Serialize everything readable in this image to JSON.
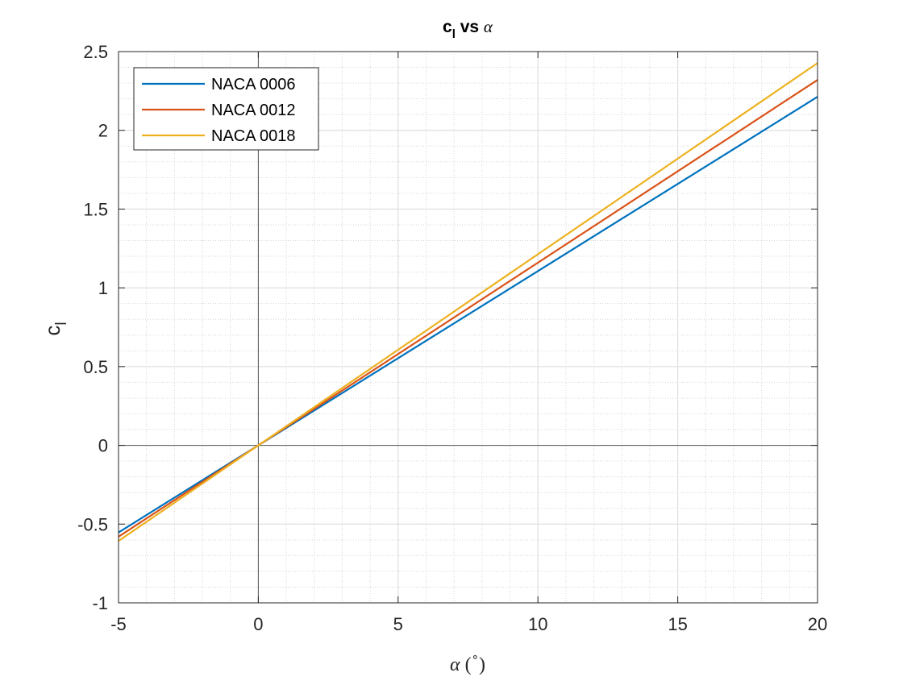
{
  "chart_data": {
    "type": "line",
    "title_main": "c",
    "title_sub": "l",
    "title_rest": " vs ",
    "title_symbol": "α",
    "xlabel_symbol": "α",
    "xlabel_open": " (",
    "xlabel_degree": "∘",
    "xlabel_close": ")",
    "ylabel_main": "c",
    "ylabel_sub": "l",
    "xlim": [
      -5,
      20
    ],
    "ylim": [
      -1,
      2.5
    ],
    "xticks": [
      -5,
      0,
      5,
      10,
      15,
      20
    ],
    "xtick_labels": [
      "-5",
      "0",
      "5",
      "10",
      "15",
      "20"
    ],
    "yticks": [
      -1,
      -0.5,
      0,
      0.5,
      1,
      1.5,
      2,
      2.5
    ],
    "ytick_labels": [
      "-1",
      "-0.5",
      "0",
      "0.5",
      "1",
      "1.5",
      "2",
      "2.5"
    ],
    "grid": true,
    "minor_grid": true,
    "legend_position": "top-left",
    "series": [
      {
        "name": "NACA 0006",
        "color": "#0072BD",
        "x": [
          -5,
          0,
          20
        ],
        "y": [
          -0.553,
          0,
          2.213
        ]
      },
      {
        "name": "NACA 0012",
        "color": "#D95319",
        "x": [
          -5,
          0,
          20
        ],
        "y": [
          -0.58,
          0,
          2.32
        ]
      },
      {
        "name": "NACA 0018",
        "color": "#EDB120",
        "x": [
          -5,
          0,
          20
        ],
        "y": [
          -0.607,
          0,
          2.427
        ]
      }
    ]
  }
}
